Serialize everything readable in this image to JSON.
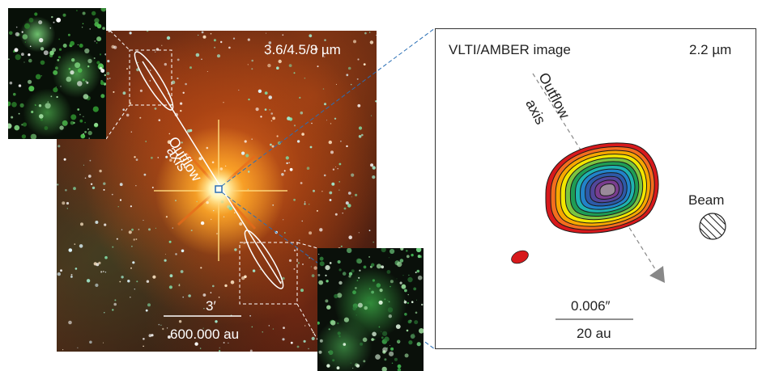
{
  "ir_image": {
    "wavelength_label": "3.6/4.5/8 µm",
    "outflow_label": "Outflow",
    "axis_label": "axis",
    "scale_angle": "3′",
    "scale_distance": "600.000 au"
  },
  "amber_panel": {
    "title": "VLTI/AMBER image",
    "wavelength": "2.2 µm",
    "outflow_label": "Outflow",
    "axis_label": "axis",
    "beam_label": "Beam",
    "scale_angle": "0.006″",
    "scale_distance": "20 au"
  },
  "colors": {
    "contours": [
      "#d7191c",
      "#f46d1e",
      "#f7a800",
      "#f2e600",
      "#7cc440",
      "#1f9d55",
      "#1eb3b0",
      "#2283c9",
      "#2d5aa8",
      "#52479b",
      "#7a3d8f",
      "#9a8a9a"
    ],
    "connector_blue": "#2a6fb5"
  }
}
